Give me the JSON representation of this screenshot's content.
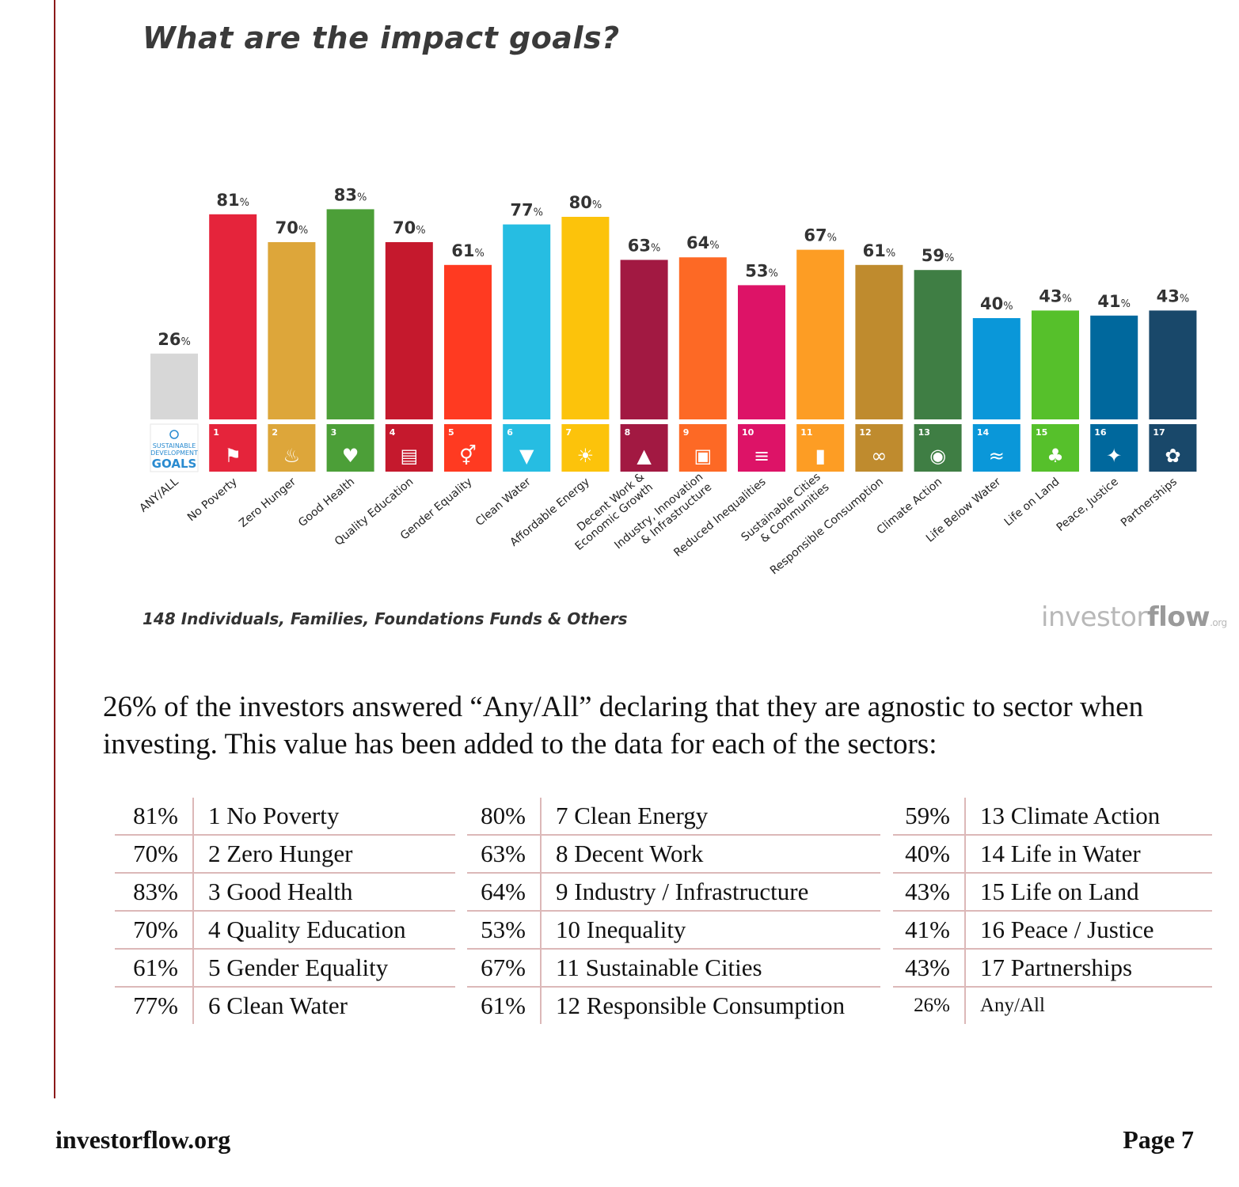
{
  "page": {
    "title": "What are the impact goals?",
    "chart_footnote": "148 Individuals, Families, Foundations Funds & Others",
    "logo": {
      "part1": "investor",
      "part2": "flow",
      "part3": ".org"
    },
    "paragraph": "26% of the investors answered “Any/All” declaring that they are agnostic to sector when investing. This value has been added to the data for each of the sectors:",
    "footer_left": "investorflow.org",
    "footer_right": "Page 7"
  },
  "chart_data": {
    "type": "bar",
    "title": "What are the impact goals?",
    "value_suffix": "%",
    "ylim": [
      0,
      100
    ],
    "grid": false,
    "categories": [
      [
        "ANY/ALL"
      ],
      [
        "No Poverty"
      ],
      [
        "Zero Hunger"
      ],
      [
        "Good Health"
      ],
      [
        "Quality Education"
      ],
      [
        "Gender Equality"
      ],
      [
        "Clean Water"
      ],
      [
        "Affordable Energy"
      ],
      [
        "Decent Work &",
        "Economic Growth"
      ],
      [
        "Industry, Innovation",
        "& Infrastructure"
      ],
      [
        "Reduced Inequalities"
      ],
      [
        "Sustainable Cities",
        "& Communities"
      ],
      [
        "Responsible Consumption"
      ],
      [
        "Climate Action"
      ],
      [
        "Life Below Water"
      ],
      [
        "Life on Land"
      ],
      [
        "Peace, Justice"
      ],
      [
        "Partnerships"
      ]
    ],
    "values": [
      26,
      81,
      70,
      83,
      70,
      61,
      77,
      80,
      63,
      64,
      53,
      67,
      61,
      59,
      40,
      43,
      41,
      43
    ],
    "icon_numbers": [
      "",
      "1",
      "2",
      "3",
      "4",
      "5",
      "6",
      "7",
      "8",
      "9",
      "10",
      "11",
      "12",
      "13",
      "14",
      "15",
      "16",
      "17"
    ],
    "icon_labels": [
      "",
      "No Poverty",
      "Zero Hunger",
      "Good Health",
      "Quality Education",
      "Gender Equality",
      "Clean Water",
      "Affordable Energy",
      "Decent Work & Economic Growth",
      "Industry, Innovation & Infrastructure",
      "Reduced Inequalities",
      "Sustainable Cities & Communities",
      "Responsible Consumption",
      "Climate Action",
      "Life Below Water",
      "Life on Land",
      "Peace, Justice",
      "Partnerships"
    ],
    "sdg_logo": {
      "line1": "SUSTAINABLE",
      "line2": "DEVELOPMENT",
      "line3": "GOALS"
    },
    "colors": [
      "#d7d7d7",
      "#e5243b",
      "#dda63a",
      "#4c9f38",
      "#c5192d",
      "#ff3a21",
      "#26bde2",
      "#fcc30b",
      "#a21942",
      "#fd6925",
      "#dd1367",
      "#fd9d24",
      "#bf8b2e",
      "#3f7e44",
      "#0a97d9",
      "#56c02b",
      "#00689d",
      "#19486a"
    ]
  },
  "table": {
    "columns": [
      [
        {
          "pct": "81%",
          "label": "1 No Poverty"
        },
        {
          "pct": "70%",
          "label": "2  Zero Hunger"
        },
        {
          "pct": "83%",
          "label": "3 Good Health"
        },
        {
          "pct": "70%",
          "label": "4 Quality Education"
        },
        {
          "pct": "61%",
          "label": "5 Gender Equality"
        },
        {
          "pct": "77%",
          "label": "6 Clean Water"
        }
      ],
      [
        {
          "pct": "80%",
          "label": "7 Clean Energy"
        },
        {
          "pct": "63%",
          "label": "8 Decent Work"
        },
        {
          "pct": "64%",
          "label": "9 Industry / Infrastructure"
        },
        {
          "pct": "53%",
          "label": "10 Inequality"
        },
        {
          "pct": "67%",
          "label": "11 Sustainable Cities"
        },
        {
          "pct": "61%",
          "label": "12 Responsible Consumption"
        }
      ],
      [
        {
          "pct": "59%",
          "label": "13 Climate Action"
        },
        {
          "pct": "40%",
          "label": "14 Life in Water"
        },
        {
          "pct": "43%",
          "label": "15 Life on Land"
        },
        {
          "pct": "41%",
          "label": "16 Peace / Justice"
        },
        {
          "pct": "43%",
          "label": "17 Partnerships"
        },
        {
          "pct": "26%",
          "label": "Any/All"
        }
      ]
    ]
  }
}
